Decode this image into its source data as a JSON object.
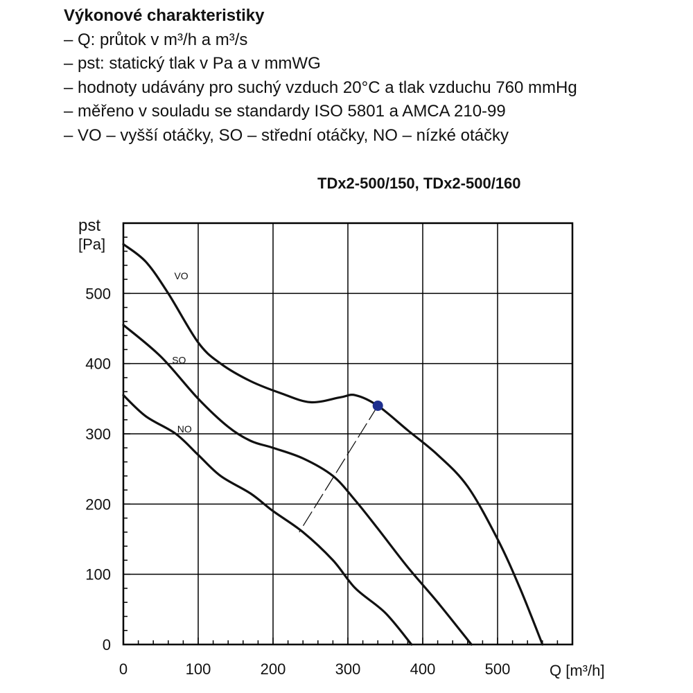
{
  "intro": {
    "title": "Výkonové charakteristiky",
    "lines": [
      "– Q: průtok v m³/h a m³/s",
      "– pst: statický tlak v Pa a v mmWG",
      "– hodnoty udávány pro suchý vzduch 20°C a tlak vzduchu 760 mmHg",
      "– měřeno v souladu se standardy ISO 5801 a AMCA 210-99",
      "– VO – vyšší otáčky, SO – střední otáčky, NO – nízké otáčky"
    ]
  },
  "chart_data": {
    "type": "line",
    "title": "TDx2-500/150, TDx2-500/160",
    "xlabel": "Q [m³/h]",
    "ylabel": "pst [Pa]",
    "ylabel_lines": [
      "pst",
      "[Pa]"
    ],
    "xlim": [
      0,
      600
    ],
    "ylim": [
      0,
      600
    ],
    "xticks": [
      0,
      100,
      200,
      300,
      400,
      500
    ],
    "yticks": [
      0,
      100,
      200,
      300,
      400,
      500
    ],
    "grid": true,
    "series": [
      {
        "name": "VO",
        "points": [
          [
            0,
            570
          ],
          [
            30,
            545
          ],
          [
            60,
            500
          ],
          [
            100,
            430
          ],
          [
            130,
            400
          ],
          [
            170,
            375
          ],
          [
            210,
            358
          ],
          [
            250,
            345
          ],
          [
            290,
            352
          ],
          [
            310,
            355
          ],
          [
            340,
            340
          ],
          [
            380,
            305
          ],
          [
            420,
            270
          ],
          [
            460,
            225
          ],
          [
            500,
            150
          ],
          [
            530,
            80
          ],
          [
            560,
            0
          ]
        ]
      },
      {
        "name": "SO",
        "points": [
          [
            0,
            455
          ],
          [
            50,
            410
          ],
          [
            100,
            350
          ],
          [
            140,
            310
          ],
          [
            170,
            290
          ],
          [
            200,
            280
          ],
          [
            240,
            265
          ],
          [
            280,
            240
          ],
          [
            310,
            205
          ],
          [
            340,
            165
          ],
          [
            380,
            110
          ],
          [
            420,
            60
          ],
          [
            465,
            0
          ]
        ]
      },
      {
        "name": "NO",
        "points": [
          [
            0,
            355
          ],
          [
            30,
            325
          ],
          [
            70,
            300
          ],
          [
            100,
            270
          ],
          [
            130,
            240
          ],
          [
            170,
            215
          ],
          [
            200,
            190
          ],
          [
            240,
            160
          ],
          [
            280,
            120
          ],
          [
            310,
            80
          ],
          [
            350,
            45
          ],
          [
            385,
            0
          ]
        ]
      }
    ],
    "series_labels": [
      {
        "name": "VO",
        "x": 68,
        "y": 520
      },
      {
        "name": "SO",
        "x": 65,
        "y": 400
      },
      {
        "name": "NO",
        "x": 72,
        "y": 302
      }
    ],
    "marker": {
      "x": 340,
      "y": 340,
      "color": "#1e2f8f"
    },
    "dashed_line": [
      [
        340,
        340
      ],
      [
        235,
        160
      ]
    ],
    "colors": {
      "curve": "#111111",
      "grid": "#000000",
      "marker": "#1e2f8f"
    }
  }
}
